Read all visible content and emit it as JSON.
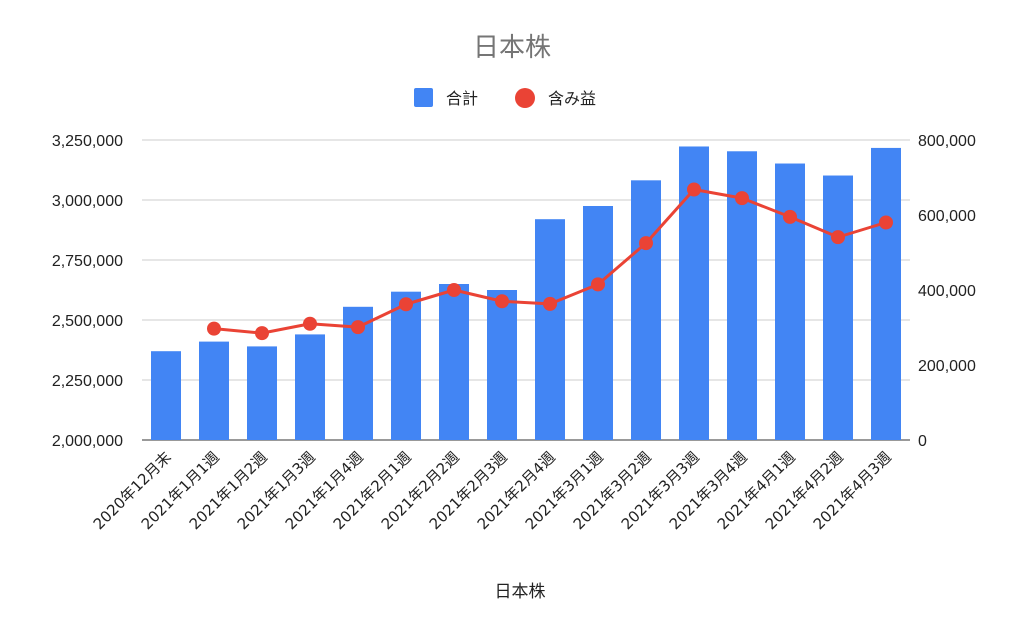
{
  "chart_data": {
    "type": "bar",
    "title": "日本株",
    "xlabel": "日本株",
    "categories": [
      "2020年12月末",
      "2021年1月1週",
      "2021年1月2週",
      "2021年1月3週",
      "2021年1月4週",
      "2021年2月1週",
      "2021年2月2週",
      "2021年2月3週",
      "2021年2月4週",
      "2021年3月1週",
      "2021年3月2週",
      "2021年3月3週",
      "2021年3月4週",
      "2021年4月1週",
      "2021年4月2週",
      "2021年4月3週"
    ],
    "series": [
      {
        "name": "合計",
        "type": "bar",
        "axis": "left",
        "color": "#4285f4",
        "values": [
          2370000,
          2410000,
          2390000,
          2440000,
          2555000,
          2618000,
          2650000,
          2625000,
          2920000,
          2975000,
          3082000,
          3223000,
          3203000,
          3152000,
          3102000,
          3217000
        ]
      },
      {
        "name": "含み益",
        "type": "line",
        "axis": "right",
        "color": "#ea4335",
        "values": [
          null,
          297000,
          285000,
          310000,
          301000,
          362000,
          400000,
          370000,
          363000,
          415000,
          525000,
          668000,
          645000,
          595000,
          541000,
          580000
        ]
      }
    ],
    "left_axis": {
      "ylim": [
        2000000,
        3250000
      ],
      "ticks": [
        "2,000,000",
        "2,250,000",
        "2,500,000",
        "2,750,000",
        "3,000,000",
        "3,250,000"
      ]
    },
    "right_axis": {
      "ylim": [
        0,
        800000
      ],
      "ticks": [
        "0",
        "200,000",
        "400,000",
        "600,000",
        "800,000"
      ]
    },
    "legend_position": "top-center",
    "grid": true
  }
}
